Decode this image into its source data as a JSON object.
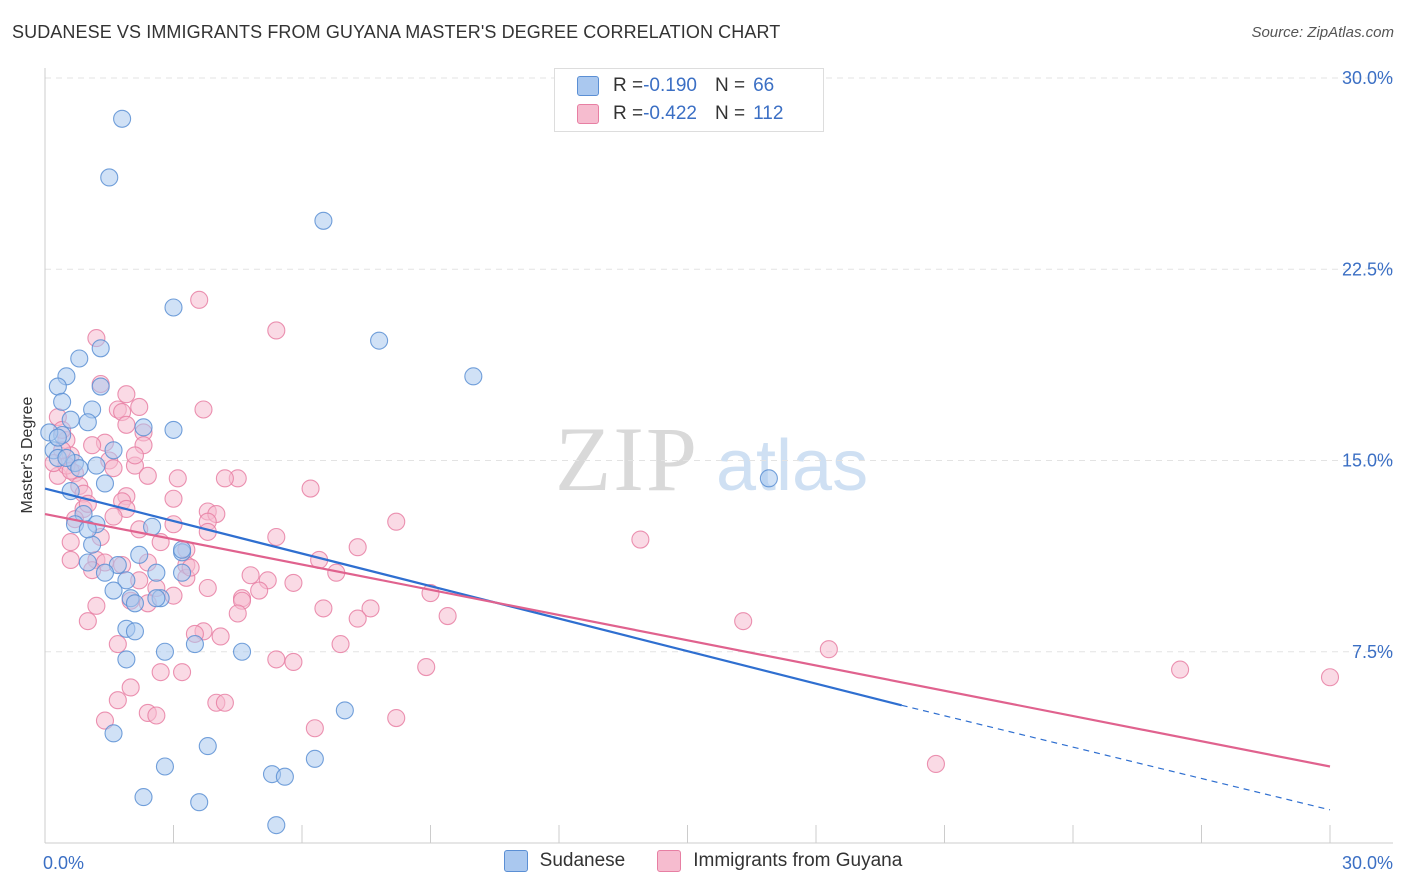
{
  "title": "SUDANESE VS IMMIGRANTS FROM GUYANA MASTER'S DEGREE CORRELATION CHART",
  "source": "Source: ZipAtlas.com",
  "watermark": {
    "zip": "ZIP",
    "atlas": "atlas"
  },
  "legend_top": {
    "rows": [
      {
        "r_label": "R = ",
        "r_value": "-0.190",
        "n_label": "N = ",
        "n_value": "66"
      },
      {
        "r_label": "R = ",
        "r_value": "-0.422",
        "n_label": "N = ",
        "n_value": "112"
      }
    ]
  },
  "colors": {
    "blue_fill": "#aac8ef",
    "blue_stroke": "#5b8fd4",
    "blue_line": "#2f6fd0",
    "pink_fill": "#f6bccf",
    "pink_stroke": "#e77fa3",
    "pink_line": "#e0628e",
    "tick_label": "#3b6fc4",
    "grid": "#e3e3e3"
  },
  "chart_data": {
    "type": "scatter",
    "title": "SUDANESE VS IMMIGRANTS FROM GUYANA MASTER'S DEGREE CORRELATION CHART",
    "xlabel": "",
    "ylabel": "Master's Degree",
    "xlim": [
      0,
      30
    ],
    "ylim": [
      0,
      30
    ],
    "x_tick_labels": [
      "0.0%",
      "30.0%"
    ],
    "y_ticks": [
      7.5,
      15,
      22.5,
      30
    ],
    "y_tick_labels": [
      "7.5%",
      "15.0%",
      "22.5%",
      "30.0%"
    ],
    "grid": "horizontal dashed",
    "legend": [
      "Sudanese",
      "Immigrants from Guyana"
    ],
    "series": [
      {
        "name": "Sudanese",
        "r": -0.19,
        "n": 66,
        "trend": {
          "x_start": 0,
          "y_start": 13.9,
          "x_solid_end": 20,
          "y_solid_end": 5.4,
          "x_dash_end": 30,
          "y_dash_end": 1.3
        },
        "points": [
          [
            1.8,
            28.4
          ],
          [
            1.5,
            26.1
          ],
          [
            6.5,
            24.4
          ],
          [
            3.0,
            21.0
          ],
          [
            7.8,
            19.7
          ],
          [
            10.0,
            18.3
          ],
          [
            1.3,
            19.4
          ],
          [
            0.8,
            19.0
          ],
          [
            0.5,
            18.3
          ],
          [
            0.3,
            17.9
          ],
          [
            1.3,
            17.9
          ],
          [
            0.4,
            17.3
          ],
          [
            1.1,
            17.0
          ],
          [
            0.6,
            16.6
          ],
          [
            0.4,
            16.0
          ],
          [
            1.0,
            16.5
          ],
          [
            2.3,
            16.3
          ],
          [
            3.0,
            16.2
          ],
          [
            0.1,
            16.1
          ],
          [
            0.2,
            15.4
          ],
          [
            1.6,
            15.4
          ],
          [
            0.3,
            15.1
          ],
          [
            0.7,
            14.9
          ],
          [
            1.2,
            14.8
          ],
          [
            16.9,
            14.3
          ],
          [
            1.4,
            14.1
          ],
          [
            0.6,
            13.8
          ],
          [
            0.9,
            12.9
          ],
          [
            0.7,
            12.5
          ],
          [
            1.2,
            12.5
          ],
          [
            2.5,
            12.4
          ],
          [
            1.1,
            11.7
          ],
          [
            2.2,
            11.3
          ],
          [
            3.2,
            11.4
          ],
          [
            1.0,
            11.0
          ],
          [
            1.7,
            10.9
          ],
          [
            1.4,
            10.6
          ],
          [
            1.9,
            10.3
          ],
          [
            2.6,
            10.6
          ],
          [
            3.2,
            10.6
          ],
          [
            1.6,
            9.9
          ],
          [
            2.0,
            9.6
          ],
          [
            2.7,
            9.6
          ],
          [
            2.1,
            9.4
          ],
          [
            1.9,
            8.4
          ],
          [
            2.1,
            8.3
          ],
          [
            3.5,
            7.8
          ],
          [
            2.8,
            7.5
          ],
          [
            4.6,
            7.5
          ],
          [
            1.9,
            7.2
          ],
          [
            7.0,
            5.2
          ],
          [
            1.6,
            4.3
          ],
          [
            3.8,
            3.8
          ],
          [
            2.8,
            3.0
          ],
          [
            6.3,
            3.3
          ],
          [
            5.3,
            2.7
          ],
          [
            5.6,
            2.6
          ],
          [
            2.3,
            1.8
          ],
          [
            3.6,
            1.6
          ],
          [
            5.4,
            0.7
          ],
          [
            0.3,
            15.9
          ],
          [
            0.5,
            15.1
          ],
          [
            0.8,
            14.7
          ],
          [
            1.0,
            12.3
          ],
          [
            2.6,
            9.6
          ],
          [
            3.2,
            11.5
          ]
        ]
      },
      {
        "name": "Immigrants from Guyana",
        "r": -0.422,
        "n": 112,
        "trend": {
          "x_start": 0,
          "y_start": 12.9,
          "x_end": 30,
          "y_end": 3.0
        },
        "points": [
          [
            3.6,
            21.3
          ],
          [
            5.4,
            20.1
          ],
          [
            1.2,
            19.8
          ],
          [
            1.3,
            18.0
          ],
          [
            1.9,
            17.6
          ],
          [
            2.2,
            17.1
          ],
          [
            1.7,
            17.0
          ],
          [
            3.7,
            17.0
          ],
          [
            1.8,
            16.9
          ],
          [
            0.3,
            16.7
          ],
          [
            1.9,
            16.4
          ],
          [
            2.3,
            16.1
          ],
          [
            0.5,
            15.8
          ],
          [
            1.4,
            15.7
          ],
          [
            2.3,
            15.6
          ],
          [
            0.6,
            15.2
          ],
          [
            1.5,
            15.0
          ],
          [
            2.1,
            14.8
          ],
          [
            1.6,
            14.7
          ],
          [
            0.7,
            14.5
          ],
          [
            0.3,
            14.4
          ],
          [
            2.4,
            14.4
          ],
          [
            3.1,
            14.3
          ],
          [
            4.5,
            14.3
          ],
          [
            4.2,
            14.3
          ],
          [
            0.8,
            14.0
          ],
          [
            6.2,
            13.9
          ],
          [
            0.9,
            13.7
          ],
          [
            1.9,
            13.6
          ],
          [
            3.0,
            13.5
          ],
          [
            1.8,
            13.4
          ],
          [
            1.9,
            13.1
          ],
          [
            0.9,
            13.1
          ],
          [
            3.8,
            13.0
          ],
          [
            4.0,
            12.9
          ],
          [
            1.6,
            12.8
          ],
          [
            0.7,
            12.7
          ],
          [
            3.8,
            12.6
          ],
          [
            8.2,
            12.6
          ],
          [
            3.0,
            12.5
          ],
          [
            2.2,
            12.3
          ],
          [
            3.8,
            12.2
          ],
          [
            5.4,
            12.0
          ],
          [
            13.9,
            11.9
          ],
          [
            0.6,
            11.8
          ],
          [
            7.3,
            11.6
          ],
          [
            3.3,
            11.5
          ],
          [
            6.4,
            11.1
          ],
          [
            0.6,
            11.1
          ],
          [
            1.2,
            11.1
          ],
          [
            1.4,
            11.0
          ],
          [
            2.4,
            11.0
          ],
          [
            1.8,
            10.9
          ],
          [
            3.3,
            10.9
          ],
          [
            1.1,
            10.7
          ],
          [
            6.8,
            10.6
          ],
          [
            4.8,
            10.5
          ],
          [
            3.3,
            10.4
          ],
          [
            5.2,
            10.3
          ],
          [
            5.8,
            10.2
          ],
          [
            2.6,
            10.0
          ],
          [
            3.8,
            10.0
          ],
          [
            9.0,
            9.8
          ],
          [
            3.0,
            9.7
          ],
          [
            4.6,
            9.6
          ],
          [
            2.0,
            9.5
          ],
          [
            4.6,
            9.5
          ],
          [
            2.4,
            9.4
          ],
          [
            1.2,
            9.3
          ],
          [
            6.5,
            9.2
          ],
          [
            7.6,
            9.2
          ],
          [
            4.5,
            9.0
          ],
          [
            9.4,
            8.9
          ],
          [
            7.3,
            8.8
          ],
          [
            16.3,
            8.7
          ],
          [
            1.0,
            8.7
          ],
          [
            3.7,
            8.3
          ],
          [
            3.5,
            8.2
          ],
          [
            4.1,
            8.1
          ],
          [
            6.9,
            7.8
          ],
          [
            1.7,
            7.8
          ],
          [
            18.3,
            7.6
          ],
          [
            5.4,
            7.2
          ],
          [
            5.8,
            7.1
          ],
          [
            8.9,
            6.9
          ],
          [
            26.5,
            6.8
          ],
          [
            30.0,
            6.5
          ],
          [
            2.7,
            6.7
          ],
          [
            3.2,
            6.7
          ],
          [
            2.0,
            6.1
          ],
          [
            1.7,
            5.6
          ],
          [
            4.0,
            5.5
          ],
          [
            4.2,
            5.5
          ],
          [
            2.4,
            5.1
          ],
          [
            2.6,
            5.0
          ],
          [
            1.4,
            4.8
          ],
          [
            8.2,
            4.9
          ],
          [
            6.3,
            4.5
          ],
          [
            20.8,
            3.1
          ],
          [
            0.5,
            14.8
          ],
          [
            0.4,
            15.4
          ],
          [
            0.2,
            14.9
          ],
          [
            0.4,
            16.2
          ],
          [
            1.1,
            15.6
          ],
          [
            2.1,
            15.2
          ],
          [
            0.6,
            14.6
          ],
          [
            1.0,
            13.3
          ],
          [
            1.3,
            12.0
          ],
          [
            2.7,
            11.8
          ],
          [
            2.2,
            10.3
          ],
          [
            3.4,
            10.8
          ],
          [
            5.0,
            9.9
          ]
        ]
      }
    ]
  },
  "legend_bottom": {
    "items": [
      "Sudanese",
      "Immigrants from Guyana"
    ]
  }
}
